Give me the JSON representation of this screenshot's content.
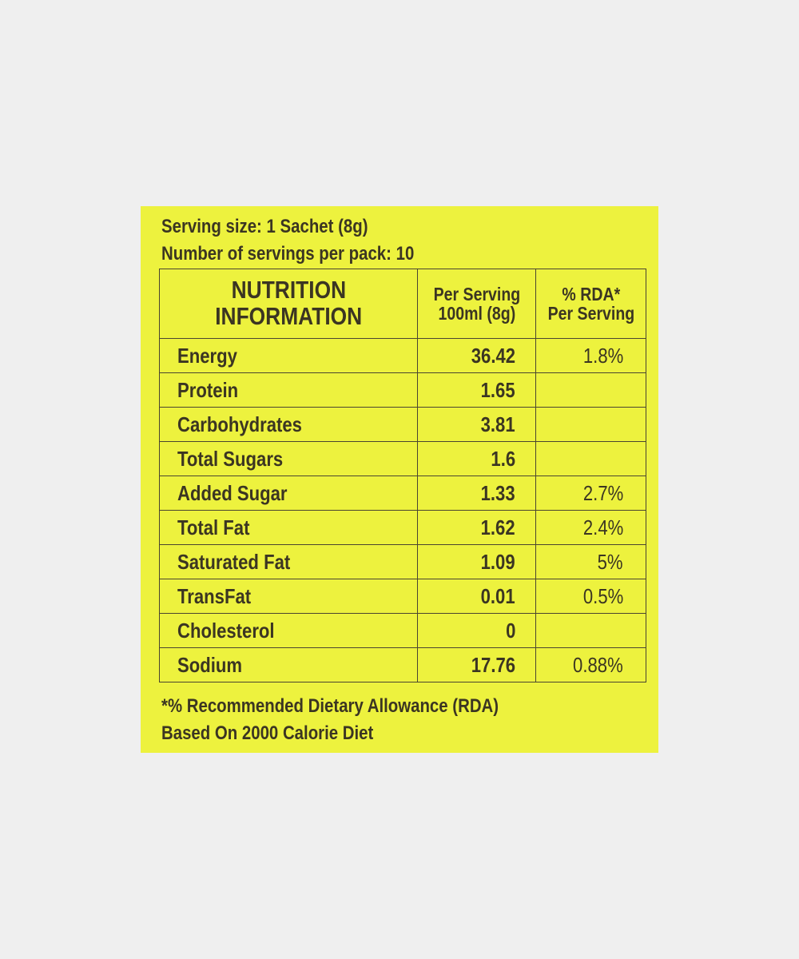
{
  "serving_size": "Serving size: 1 Sachet (8g)",
  "servings_per_pack": "Number of servings per pack: 10",
  "table": {
    "headers": {
      "col1": [
        "NUTRITION",
        "INFORMATION"
      ],
      "col2": [
        "Per Serving",
        "100ml (8g)"
      ],
      "col3": [
        "% RDA*",
        "Per Serving"
      ]
    },
    "rows": [
      {
        "name": "Energy",
        "value": "36.42",
        "rda": "1.8%"
      },
      {
        "name": "Protein",
        "value": "1.65",
        "rda": ""
      },
      {
        "name": "Carbohydrates",
        "value": "3.81",
        "rda": ""
      },
      {
        "name": "Total Sugars",
        "value": "1.6",
        "rda": ""
      },
      {
        "name": "Added Sugar",
        "value": "1.33",
        "rda": "2.7%"
      },
      {
        "name": "Total Fat",
        "value": "1.62",
        "rda": "2.4%"
      },
      {
        "name": "Saturated Fat",
        "value": "1.09",
        "rda": "5%"
      },
      {
        "name": "TransFat",
        "value": "0.01",
        "rda": "0.5%"
      },
      {
        "name": "Cholesterol",
        "value": "0",
        "rda": ""
      },
      {
        "name": "Sodium",
        "value": "17.76",
        "rda": "0.88%"
      }
    ]
  },
  "footnote": [
    "*% Recommended Dietary Allowance (RDA)",
    "Based On 2000 Calorie Diet"
  ],
  "colors": {
    "label_background": "#edf23e",
    "text": "#3b3522",
    "page_background": "#efefef"
  }
}
